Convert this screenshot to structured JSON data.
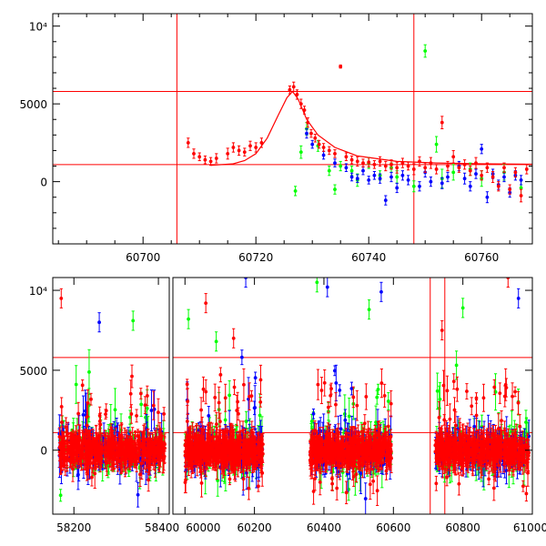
{
  "chart_data": [
    {
      "type": "scatter",
      "panel": "top",
      "xlim": [
        60684,
        60769
      ],
      "ylim": [
        -4000,
        10800
      ],
      "xticks": [
        60700,
        60720,
        60740,
        60760
      ],
      "yticks": [
        {
          "v": 10000,
          "label": "10⁴"
        },
        {
          "v": 5000,
          "label": "5000"
        },
        {
          "v": 0,
          "label": "0"
        }
      ],
      "hlines": [
        5800,
        1100
      ],
      "vlines": [
        60706,
        60748
      ],
      "fit_curve": {
        "color": "#ff0000",
        "x": [
          60712,
          60716,
          60718,
          60720,
          60722,
          60724,
          60725.5,
          60726.5,
          60727.5,
          60729,
          60731,
          60734,
          60738,
          60745,
          60752,
          60760,
          60769
        ],
        "y": [
          1050,
          1150,
          1350,
          1800,
          2800,
          4300,
          5400,
          5800,
          5300,
          4000,
          3000,
          2200,
          1650,
          1300,
          1200,
          1150,
          1120
        ]
      },
      "series": [
        {
          "color": "#ff0000",
          "points": [
            [
              60708,
              2500,
              300
            ],
            [
              60709,
              1800,
              300
            ],
            [
              60710,
              1600,
              250
            ],
            [
              60711,
              1400,
              250
            ],
            [
              60712,
              1300,
              250
            ],
            [
              60713,
              1500,
              300
            ],
            [
              60715,
              1800,
              350
            ],
            [
              60716,
              2200,
              300
            ],
            [
              60717,
              2000,
              300
            ],
            [
              60718,
              1900,
              250
            ],
            [
              60719,
              2300,
              300
            ],
            [
              60720,
              2200,
              300
            ],
            [
              60721,
              2500,
              300
            ],
            [
              60726,
              5900,
              250
            ],
            [
              60726.7,
              6100,
              300
            ],
            [
              60727.3,
              5600,
              300
            ],
            [
              60728,
              5000,
              300
            ],
            [
              60728.6,
              4600,
              250
            ],
            [
              60729.2,
              3800,
              300
            ],
            [
              60729.8,
              3100,
              250
            ],
            [
              60730.5,
              2800,
              250
            ],
            [
              60731.2,
              2400,
              250
            ],
            [
              60732,
              2200,
              250
            ],
            [
              60733,
              2000,
              250
            ],
            [
              60734,
              1800,
              250
            ],
            [
              60735,
              7400,
              100
            ],
            [
              60736,
              1600,
              250
            ],
            [
              60737,
              1400,
              250
            ],
            [
              60738,
              1300,
              300
            ],
            [
              60739,
              1200,
              250
            ],
            [
              60740,
              1250,
              300
            ],
            [
              60741,
              1100,
              250
            ],
            [
              60742,
              1300,
              300
            ],
            [
              60743,
              1000,
              300
            ],
            [
              60744,
              1100,
              300
            ],
            [
              60745,
              900,
              350
            ],
            [
              60746,
              1200,
              300
            ],
            [
              60747,
              1000,
              250
            ],
            [
              60748,
              800,
              350
            ],
            [
              60749,
              1300,
              300
            ],
            [
              60750,
              900,
              300
            ],
            [
              60751,
              1200,
              350
            ],
            [
              60752,
              800,
              300
            ],
            [
              60753,
              3800,
              400
            ],
            [
              60754,
              1000,
              300
            ],
            [
              60755,
              1600,
              400
            ],
            [
              60756,
              900,
              300
            ],
            [
              60757,
              1100,
              300
            ],
            [
              60758,
              700,
              300
            ],
            [
              60759,
              1200,
              350
            ],
            [
              60760,
              400,
              300
            ],
            [
              60761,
              900,
              300
            ],
            [
              60762,
              300,
              350
            ],
            [
              60763,
              -300,
              300
            ],
            [
              60764,
              900,
              300
            ],
            [
              60765,
              -500,
              300
            ],
            [
              60766,
              600,
              300
            ],
            [
              60767,
              -900,
              400
            ],
            [
              60768,
              800,
              300
            ]
          ]
        },
        {
          "color": "#00ff00",
          "points": [
            [
              60727,
              -600,
              300
            ],
            [
              60728,
              1900,
              400
            ],
            [
              60729,
              3400,
              400
            ],
            [
              60731,
              2300,
              350
            ],
            [
              60733,
              700,
              300
            ],
            [
              60734,
              -500,
              300
            ],
            [
              60735,
              1000,
              300
            ],
            [
              60737,
              700,
              300
            ],
            [
              60738,
              100,
              400
            ],
            [
              60740,
              1200,
              350
            ],
            [
              60742,
              400,
              300
            ],
            [
              60744,
              900,
              300
            ],
            [
              60745,
              300,
              400
            ],
            [
              60748,
              -300,
              350
            ],
            [
              60750,
              8400,
              400
            ],
            [
              60752,
              2400,
              500
            ],
            [
              60753,
              200,
              600
            ],
            [
              60755,
              600,
              500
            ],
            [
              60758,
              800,
              400
            ],
            [
              60760,
              200,
              500
            ],
            [
              60764,
              600,
              500
            ],
            [
              60767,
              -400,
              500
            ]
          ]
        },
        {
          "color": "#0000ff",
          "points": [
            [
              60729,
              3100,
              300
            ],
            [
              60730,
              2400,
              250
            ],
            [
              60732,
              1700,
              250
            ],
            [
              60734,
              1200,
              250
            ],
            [
              60736,
              900,
              250
            ],
            [
              60737,
              300,
              250
            ],
            [
              60738,
              200,
              250
            ],
            [
              60739,
              700,
              250
            ],
            [
              60740,
              100,
              250
            ],
            [
              60741,
              400,
              250
            ],
            [
              60742,
              200,
              300
            ],
            [
              60743,
              -1200,
              300
            ],
            [
              60744,
              300,
              300
            ],
            [
              60745,
              -400,
              300
            ],
            [
              60746,
              400,
              300
            ],
            [
              60747,
              100,
              300
            ],
            [
              60749,
              -300,
              300
            ],
            [
              60750,
              600,
              300
            ],
            [
              60751,
              0,
              300
            ],
            [
              60753,
              -100,
              350
            ],
            [
              60754,
              300,
              300
            ],
            [
              60756,
              1000,
              300
            ],
            [
              60757,
              200,
              350
            ],
            [
              60758,
              -300,
              300
            ],
            [
              60759,
              500,
              300
            ],
            [
              60760,
              2100,
              300
            ],
            [
              60761,
              -1000,
              350
            ],
            [
              60762,
              500,
              300
            ],
            [
              60763,
              -200,
              300
            ],
            [
              60764,
              300,
              300
            ],
            [
              60765,
              -700,
              300
            ],
            [
              60766,
              400,
              300
            ],
            [
              60767,
              100,
              300
            ]
          ]
        }
      ]
    },
    {
      "type": "scatter",
      "panel": "bottom",
      "xlim": [
        58150,
        58430,
        59960,
        61000
      ],
      "ylim": [
        -4000,
        10800
      ],
      "xtick_labels": [
        "58200",
        "58400",
        "60000",
        "60200",
        "60400",
        "60600",
        "60800",
        "61000"
      ],
      "yticks": [
        {
          "v": 10000,
          "label": "10⁴"
        },
        {
          "v": 5000,
          "label": "5000"
        },
        {
          "v": 0,
          "label": "0"
        }
      ],
      "hlines": [
        5800,
        1100
      ],
      "vlines": [
        60706,
        60748
      ],
      "seasons": [
        [
          58165,
          58415
        ],
        [
          60000,
          60225
        ],
        [
          60360,
          60595
        ],
        [
          60720,
          60990
        ]
      ],
      "outliers": [
        [
          "#ff0000",
          58170,
          9500
        ],
        [
          "#0000ff",
          58260,
          8000
        ],
        [
          "#00ff00",
          58340,
          8100
        ],
        [
          "#00ff00",
          60010,
          8200
        ],
        [
          "#ff0000",
          60060,
          9200
        ],
        [
          "#00ff00",
          60090,
          6800
        ],
        [
          "#0000ff",
          60175,
          10800
        ],
        [
          "#ff0000",
          60140,
          7000
        ],
        [
          "#00ff00",
          60380,
          10500
        ],
        [
          "#0000ff",
          60410,
          10200
        ],
        [
          "#0000ff",
          60565,
          9900
        ],
        [
          "#00ff00",
          60530,
          8800
        ],
        [
          "#ff0000",
          60740,
          7500
        ],
        [
          "#0000ff",
          60960,
          9500
        ],
        [
          "#ff0000",
          60930,
          10800
        ],
        [
          "#00ff00",
          60800,
          8900
        ]
      ]
    }
  ]
}
